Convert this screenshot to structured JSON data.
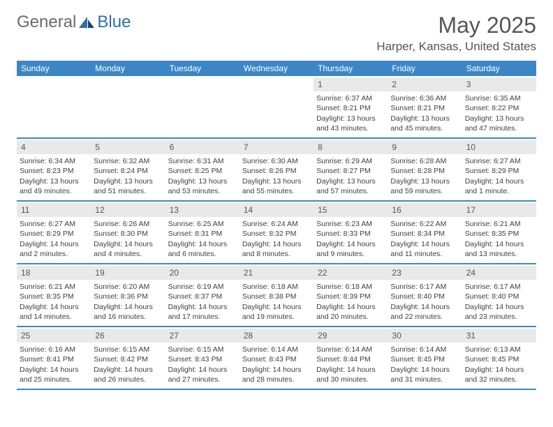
{
  "brand": {
    "general": "General",
    "blue": "Blue"
  },
  "title": "May 2025",
  "location": "Harper, Kansas, United States",
  "colors": {
    "header_bg": "#3d86c6",
    "header_fg": "#ffffff",
    "daynum_bg": "#e9e9e9",
    "rule": "#3d86c6",
    "text": "#404040"
  },
  "day_headers": [
    "Sunday",
    "Monday",
    "Tuesday",
    "Wednesday",
    "Thursday",
    "Friday",
    "Saturday"
  ],
  "weeks": [
    [
      {
        "n": "",
        "sunrise": "",
        "sunset": "",
        "daylight": ""
      },
      {
        "n": "",
        "sunrise": "",
        "sunset": "",
        "daylight": ""
      },
      {
        "n": "",
        "sunrise": "",
        "sunset": "",
        "daylight": ""
      },
      {
        "n": "",
        "sunrise": "",
        "sunset": "",
        "daylight": ""
      },
      {
        "n": "1",
        "sunrise": "Sunrise: 6:37 AM",
        "sunset": "Sunset: 8:21 PM",
        "daylight": "Daylight: 13 hours and 43 minutes."
      },
      {
        "n": "2",
        "sunrise": "Sunrise: 6:36 AM",
        "sunset": "Sunset: 8:21 PM",
        "daylight": "Daylight: 13 hours and 45 minutes."
      },
      {
        "n": "3",
        "sunrise": "Sunrise: 6:35 AM",
        "sunset": "Sunset: 8:22 PM",
        "daylight": "Daylight: 13 hours and 47 minutes."
      }
    ],
    [
      {
        "n": "4",
        "sunrise": "Sunrise: 6:34 AM",
        "sunset": "Sunset: 8:23 PM",
        "daylight": "Daylight: 13 hours and 49 minutes."
      },
      {
        "n": "5",
        "sunrise": "Sunrise: 6:32 AM",
        "sunset": "Sunset: 8:24 PM",
        "daylight": "Daylight: 13 hours and 51 minutes."
      },
      {
        "n": "6",
        "sunrise": "Sunrise: 6:31 AM",
        "sunset": "Sunset: 8:25 PM",
        "daylight": "Daylight: 13 hours and 53 minutes."
      },
      {
        "n": "7",
        "sunrise": "Sunrise: 6:30 AM",
        "sunset": "Sunset: 8:26 PM",
        "daylight": "Daylight: 13 hours and 55 minutes."
      },
      {
        "n": "8",
        "sunrise": "Sunrise: 6:29 AM",
        "sunset": "Sunset: 8:27 PM",
        "daylight": "Daylight: 13 hours and 57 minutes."
      },
      {
        "n": "9",
        "sunrise": "Sunrise: 6:28 AM",
        "sunset": "Sunset: 8:28 PM",
        "daylight": "Daylight: 13 hours and 59 minutes."
      },
      {
        "n": "10",
        "sunrise": "Sunrise: 6:27 AM",
        "sunset": "Sunset: 8:29 PM",
        "daylight": "Daylight: 14 hours and 1 minute."
      }
    ],
    [
      {
        "n": "11",
        "sunrise": "Sunrise: 6:27 AM",
        "sunset": "Sunset: 8:29 PM",
        "daylight": "Daylight: 14 hours and 2 minutes."
      },
      {
        "n": "12",
        "sunrise": "Sunrise: 6:26 AM",
        "sunset": "Sunset: 8:30 PM",
        "daylight": "Daylight: 14 hours and 4 minutes."
      },
      {
        "n": "13",
        "sunrise": "Sunrise: 6:25 AM",
        "sunset": "Sunset: 8:31 PM",
        "daylight": "Daylight: 14 hours and 6 minutes."
      },
      {
        "n": "14",
        "sunrise": "Sunrise: 6:24 AM",
        "sunset": "Sunset: 8:32 PM",
        "daylight": "Daylight: 14 hours and 8 minutes."
      },
      {
        "n": "15",
        "sunrise": "Sunrise: 6:23 AM",
        "sunset": "Sunset: 8:33 PM",
        "daylight": "Daylight: 14 hours and 9 minutes."
      },
      {
        "n": "16",
        "sunrise": "Sunrise: 6:22 AM",
        "sunset": "Sunset: 8:34 PM",
        "daylight": "Daylight: 14 hours and 11 minutes."
      },
      {
        "n": "17",
        "sunrise": "Sunrise: 6:21 AM",
        "sunset": "Sunset: 8:35 PM",
        "daylight": "Daylight: 14 hours and 13 minutes."
      }
    ],
    [
      {
        "n": "18",
        "sunrise": "Sunrise: 6:21 AM",
        "sunset": "Sunset: 8:35 PM",
        "daylight": "Daylight: 14 hours and 14 minutes."
      },
      {
        "n": "19",
        "sunrise": "Sunrise: 6:20 AM",
        "sunset": "Sunset: 8:36 PM",
        "daylight": "Daylight: 14 hours and 16 minutes."
      },
      {
        "n": "20",
        "sunrise": "Sunrise: 6:19 AM",
        "sunset": "Sunset: 8:37 PM",
        "daylight": "Daylight: 14 hours and 17 minutes."
      },
      {
        "n": "21",
        "sunrise": "Sunrise: 6:18 AM",
        "sunset": "Sunset: 8:38 PM",
        "daylight": "Daylight: 14 hours and 19 minutes."
      },
      {
        "n": "22",
        "sunrise": "Sunrise: 6:18 AM",
        "sunset": "Sunset: 8:39 PM",
        "daylight": "Daylight: 14 hours and 20 minutes."
      },
      {
        "n": "23",
        "sunrise": "Sunrise: 6:17 AM",
        "sunset": "Sunset: 8:40 PM",
        "daylight": "Daylight: 14 hours and 22 minutes."
      },
      {
        "n": "24",
        "sunrise": "Sunrise: 6:17 AM",
        "sunset": "Sunset: 8:40 PM",
        "daylight": "Daylight: 14 hours and 23 minutes."
      }
    ],
    [
      {
        "n": "25",
        "sunrise": "Sunrise: 6:16 AM",
        "sunset": "Sunset: 8:41 PM",
        "daylight": "Daylight: 14 hours and 25 minutes."
      },
      {
        "n": "26",
        "sunrise": "Sunrise: 6:15 AM",
        "sunset": "Sunset: 8:42 PM",
        "daylight": "Daylight: 14 hours and 26 minutes."
      },
      {
        "n": "27",
        "sunrise": "Sunrise: 6:15 AM",
        "sunset": "Sunset: 8:43 PM",
        "daylight": "Daylight: 14 hours and 27 minutes."
      },
      {
        "n": "28",
        "sunrise": "Sunrise: 6:14 AM",
        "sunset": "Sunset: 8:43 PM",
        "daylight": "Daylight: 14 hours and 28 minutes."
      },
      {
        "n": "29",
        "sunrise": "Sunrise: 6:14 AM",
        "sunset": "Sunset: 8:44 PM",
        "daylight": "Daylight: 14 hours and 30 minutes."
      },
      {
        "n": "30",
        "sunrise": "Sunrise: 6:14 AM",
        "sunset": "Sunset: 8:45 PM",
        "daylight": "Daylight: 14 hours and 31 minutes."
      },
      {
        "n": "31",
        "sunrise": "Sunrise: 6:13 AM",
        "sunset": "Sunset: 8:45 PM",
        "daylight": "Daylight: 14 hours and 32 minutes."
      }
    ]
  ]
}
